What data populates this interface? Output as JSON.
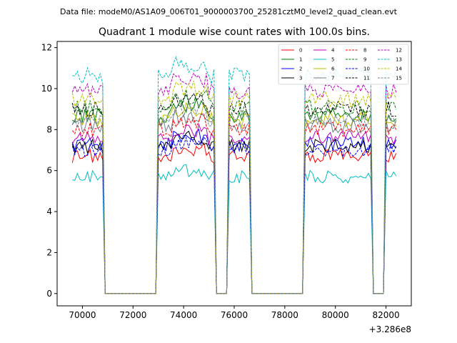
{
  "figure": {
    "suptitle": "Data file: modeM0/AS1A09_006T01_9000003700_25281cztM0_level2_quad_clean.evt",
    "title": "Quadrant 1 module wise count rates with 100.0s bins."
  },
  "chart_data": {
    "type": "line",
    "title": "Quadrant 1 module wise count rates with 100.0s bins.",
    "xlabel": "",
    "ylabel": "",
    "x_offset_label": "+3.286e8",
    "xlim": [
      69000,
      83000
    ],
    "ylim": [
      -0.6,
      12.3
    ],
    "xticks": [
      70000,
      72000,
      74000,
      76000,
      78000,
      80000,
      82000
    ],
    "xtick_labels": [
      "70000",
      "72000",
      "74000",
      "76000",
      "78000",
      "80000",
      "82000"
    ],
    "yticks": [
      0,
      2,
      4,
      6,
      8,
      10,
      12
    ],
    "ytick_labels": [
      "0",
      "2",
      "4",
      "6",
      "8",
      "10",
      "12"
    ],
    "grid": false,
    "legend_position": "top-right",
    "legend_columns": 4,
    "segments": [
      {
        "start": 69600,
        "end": 70800
      },
      {
        "start": 73000,
        "end": 75200
      },
      {
        "start": 75800,
        "end": 76600
      },
      {
        "start": 78800,
        "end": 81400
      },
      {
        "start": 82000,
        "end": 82400
      }
    ],
    "gaps": [
      {
        "start": 70900,
        "end": 72900
      },
      {
        "start": 75300,
        "end": 75700
      },
      {
        "start": 76700,
        "end": 78700
      },
      {
        "start": 81500,
        "end": 81900
      }
    ],
    "series": [
      {
        "name": "0",
        "color": "#ff0000",
        "dash": "solid",
        "level": 6.7
      },
      {
        "name": "1",
        "color": "#008000",
        "dash": "solid",
        "level": 8.7
      },
      {
        "name": "2",
        "color": "#0000ff",
        "dash": "solid",
        "level": 7.3
      },
      {
        "name": "3",
        "color": "#000000",
        "dash": "solid",
        "level": 7.2
      },
      {
        "name": "4",
        "color": "#bf00bf",
        "dash": "solid",
        "level": 7.6
      },
      {
        "name": "5",
        "color": "#00bfbf",
        "dash": "solid",
        "level": 5.7
      },
      {
        "name": "6",
        "color": "#bfbf00",
        "dash": "solid",
        "level": 8.5
      },
      {
        "name": "7",
        "color": "#708090",
        "dash": "solid",
        "level": 8.2
      },
      {
        "name": "8",
        "color": "#ff0000",
        "dash": "dashed",
        "level": 8.0
      },
      {
        "name": "9",
        "color": "#008000",
        "dash": "dashed",
        "level": 9.1
      },
      {
        "name": "10",
        "color": "#0000ff",
        "dash": "dashed",
        "level": 7.0
      },
      {
        "name": "11",
        "color": "#000000",
        "dash": "dashed",
        "level": 9.0
      },
      {
        "name": "12",
        "color": "#bf00bf",
        "dash": "dashed",
        "level": 9.9
      },
      {
        "name": "13",
        "color": "#00bfbf",
        "dash": "dashed",
        "level": 10.6
      },
      {
        "name": "14",
        "color": "#bfbf00",
        "dash": "dashed",
        "level": 9.5
      },
      {
        "name": "15",
        "color": "#708090",
        "dash": "dashed",
        "level": 8.5
      }
    ]
  }
}
